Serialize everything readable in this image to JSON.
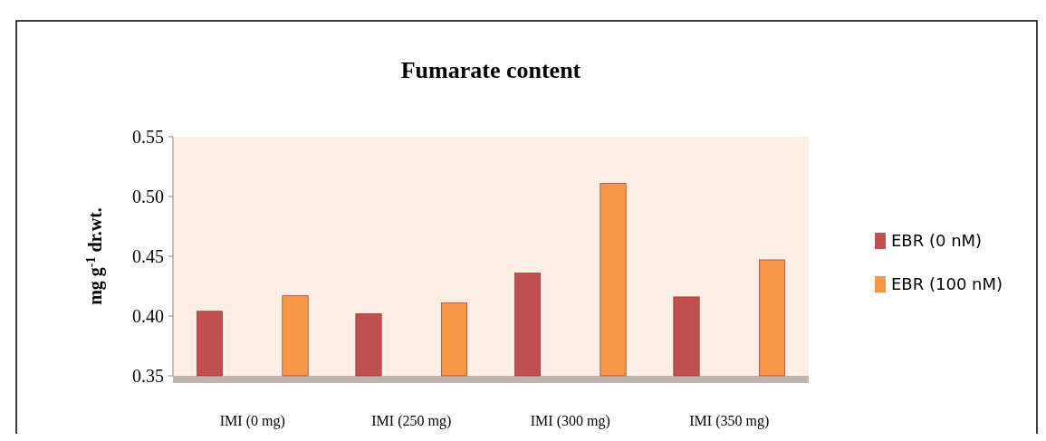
{
  "chart_data": {
    "type": "bar",
    "title": "Fumarate content",
    "ylabel": "mg g$^{-1}$ dr.wt.",
    "categories": [
      "IMI (0 mg)",
      "IMI (250 mg)",
      "IMI (300 mg)",
      "IMI (350 mg)"
    ],
    "series": [
      {
        "name": "EBR (0 nM)",
        "color": "#c0504d",
        "values": [
          0.404,
          0.402,
          0.436,
          0.416
        ]
      },
      {
        "name": "EBR (100 nM)",
        "color": "#f79646",
        "values": [
          0.417,
          0.411,
          0.511,
          0.447
        ]
      }
    ],
    "ylim": [
      0.35,
      0.55
    ],
    "yticks": [
      {
        "value": 0.35,
        "label": "0.35"
      },
      {
        "value": 0.4,
        "label": "0.40"
      },
      {
        "value": 0.45,
        "label": "0.45"
      },
      {
        "value": 0.5,
        "label": "0.50"
      },
      {
        "value": 0.55,
        "label": "0.55"
      }
    ],
    "grid": false,
    "legend": "right"
  }
}
